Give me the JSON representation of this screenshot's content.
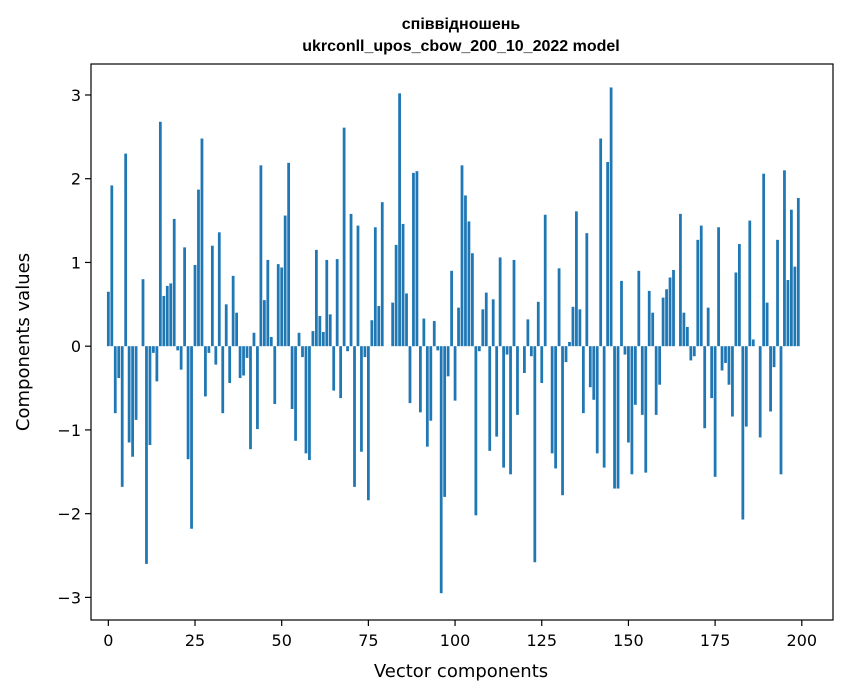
{
  "chart_data": {
    "type": "bar",
    "title_lines": [
      "співвідношень",
      "ukrconll_upos_cbow_200_10_2022 model"
    ],
    "xlabel": "Vector components",
    "ylabel": "Components values",
    "xlim": [
      -5,
      209
    ],
    "ylim": [
      -3.27,
      3.37
    ],
    "xticks": [
      0,
      25,
      50,
      75,
      100,
      125,
      150,
      175,
      200
    ],
    "yticks": [
      -3,
      -2,
      -1,
      0,
      1,
      2,
      3
    ],
    "ytick_labels": [
      "−3",
      "−2",
      "−1",
      "0",
      "1",
      "2",
      "3"
    ],
    "bar_color": "#1f77b4",
    "grid": false,
    "values": [
      0.65,
      1.92,
      -0.8,
      -0.38,
      -1.68,
      2.3,
      -1.15,
      -1.32,
      -0.88,
      0.0,
      0.8,
      -2.6,
      -1.18,
      -0.08,
      -0.42,
      2.68,
      0.6,
      0.72,
      0.75,
      1.52,
      -0.05,
      -0.28,
      1.18,
      -1.35,
      -2.18,
      0.97,
      1.87,
      2.48,
      -0.6,
      -0.08,
      1.2,
      -0.22,
      1.36,
      -0.8,
      0.5,
      -0.44,
      0.84,
      0.4,
      -0.38,
      -0.35,
      -0.14,
      -1.23,
      0.16,
      -0.99,
      2.16,
      0.55,
      1.03,
      0.11,
      -0.69,
      0.98,
      0.94,
      1.56,
      2.19,
      -0.75,
      -1.13,
      0.16,
      -0.13,
      -1.28,
      -1.36,
      0.18,
      1.15,
      0.36,
      0.17,
      1.03,
      0.38,
      -0.53,
      1.04,
      -0.62,
      2.61,
      -0.06,
      1.58,
      -1.68,
      1.44,
      -1.26,
      -0.13,
      -1.84,
      0.31,
      1.42,
      0.48,
      1.72,
      0.0,
      0.0,
      0.52,
      1.21,
      3.02,
      1.46,
      0.63,
      -0.68,
      2.07,
      2.09,
      -0.79,
      0.33,
      -1.2,
      -0.89,
      0.3,
      -0.05,
      -2.95,
      -1.8,
      -0.36,
      0.9,
      -0.65,
      0.46,
      2.16,
      1.8,
      1.49,
      1.11,
      -2.02,
      -0.06,
      0.44,
      0.64,
      -1.25,
      0.56,
      -1.08,
      1.06,
      -1.45,
      -0.1,
      -1.53,
      1.03,
      -0.82,
      0.0,
      -0.32,
      0.32,
      -0.12,
      -2.58,
      0.53,
      -0.44,
      1.57,
      0.0,
      -1.28,
      -1.46,
      0.93,
      -1.78,
      -0.19,
      0.05,
      0.47,
      1.61,
      0.44,
      -0.8,
      1.35,
      -0.49,
      -0.64,
      -1.28,
      2.48,
      -1.45,
      2.2,
      3.09,
      -1.7,
      -1.7,
      0.78,
      -0.1,
      -1.15,
      -1.53,
      -0.7,
      0.9,
      -0.82,
      -1.51,
      0.66,
      0.4,
      -0.82,
      -0.46,
      0.58,
      0.68,
      0.82,
      0.91,
      0.0,
      1.58,
      0.4,
      0.23,
      -0.17,
      -0.12,
      1.27,
      1.44,
      -0.98,
      0.46,
      -0.62,
      -1.56,
      1.42,
      -0.29,
      -0.2,
      -0.46,
      -0.84,
      0.88,
      1.22,
      -2.07,
      -0.96,
      1.5,
      0.08,
      0.0,
      -1.09,
      2.06,
      0.52,
      -0.78,
      -0.25,
      1.27,
      -1.53,
      2.1,
      0.79,
      1.63,
      0.95,
      1.77
    ]
  }
}
